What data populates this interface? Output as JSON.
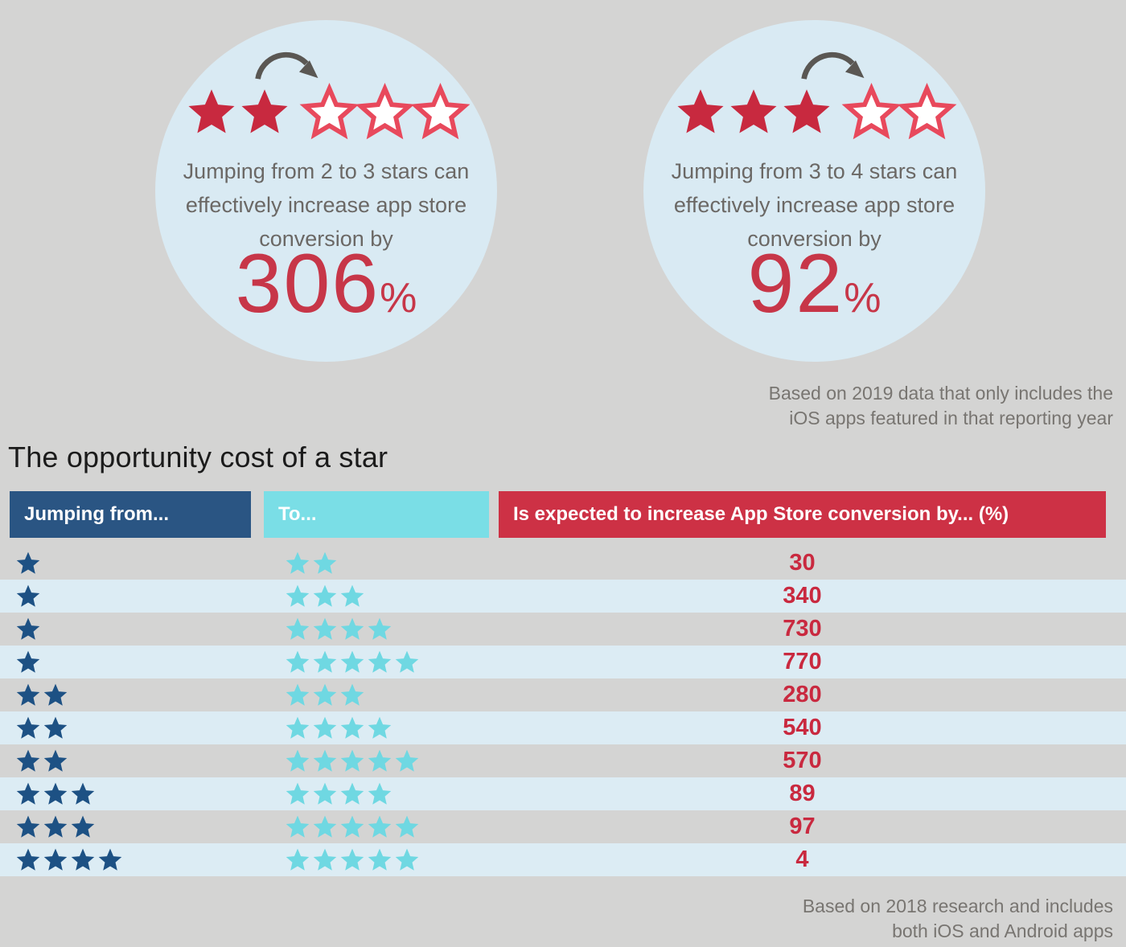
{
  "colors": {
    "page_bg": "#d4d4d3",
    "circle_bg": "#d9eaf3",
    "star_red": "#c8293f",
    "star_outline_red": "#e8495c",
    "star_navy": "#1d5184",
    "star_cyan": "#6fd8e2",
    "arrow_gray": "#5a5753",
    "header_blue": "#2a5583",
    "header_cyan": "#7adee6",
    "header_red": "#cd3145",
    "row_blue": "#dcecf4",
    "value_red": "#c9293f",
    "number_red": "#c73648",
    "text_gray": "#6b6865",
    "footnote_gray": "#787571",
    "heading_dark": "#1b1b1b"
  },
  "circles": [
    {
      "stars_filled": 2,
      "stars_outline": 3,
      "text": "Jumping from 2 to 3 stars can effectively increase app store conversion by",
      "value": "306",
      "percent_sign": "%"
    },
    {
      "stars_filled": 3,
      "stars_outline": 2,
      "text": "Jumping from 3 to 4 stars can effectively increase app store conversion by",
      "value": "92",
      "percent_sign": "%"
    }
  ],
  "note_top": {
    "line1": "Based on 2019 data that only includes the",
    "line2": "iOS apps featured in that reporting year"
  },
  "section": {
    "title": "The opportunity cost of a star"
  },
  "table": {
    "headers": [
      {
        "label": "Jumping from..."
      },
      {
        "label": "To..."
      },
      {
        "label": "Is expected to increase App Store conversion by... (%)"
      }
    ],
    "rows": [
      {
        "from": 1,
        "to": 2,
        "value": "30"
      },
      {
        "from": 1,
        "to": 3,
        "value": "340"
      },
      {
        "from": 1,
        "to": 4,
        "value": "730"
      },
      {
        "from": 1,
        "to": 5,
        "value": "770"
      },
      {
        "from": 2,
        "to": 3,
        "value": "280"
      },
      {
        "from": 2,
        "to": 4,
        "value": "540"
      },
      {
        "from": 2,
        "to": 5,
        "value": "570"
      },
      {
        "from": 3,
        "to": 4,
        "value": "89"
      },
      {
        "from": 3,
        "to": 5,
        "value": "97"
      },
      {
        "from": 4,
        "to": 5,
        "value": "4"
      }
    ]
  },
  "note_bottom": {
    "line1": "Based on 2018 research and includes",
    "line2": "both iOS and Android apps"
  },
  "chart_data": {
    "type": "table",
    "title": "The opportunity cost of a star",
    "columns": [
      "Jumping from... (stars)",
      "To... (stars)",
      "Is expected to increase App Store conversion by... (%)"
    ],
    "rows": [
      [
        1,
        2,
        30
      ],
      [
        1,
        3,
        340
      ],
      [
        1,
        4,
        730
      ],
      [
        1,
        5,
        770
      ],
      [
        2,
        3,
        280
      ],
      [
        2,
        4,
        540
      ],
      [
        2,
        5,
        570
      ],
      [
        3,
        4,
        89
      ],
      [
        3,
        5,
        97
      ],
      [
        4,
        5,
        4
      ]
    ],
    "callouts": [
      {
        "from_stars": 2,
        "to_stars": 3,
        "conversion_increase_pct": 306,
        "note": "Based on 2019 data that only includes the iOS apps featured in that reporting year"
      },
      {
        "from_stars": 3,
        "to_stars": 4,
        "conversion_increase_pct": 92,
        "note": "Based on 2019 data that only includes the iOS apps featured in that reporting year"
      }
    ],
    "notes": [
      "Based on 2019 data that only includes the iOS apps featured in that reporting year",
      "Based on 2018 research and includes both iOS and Android apps"
    ]
  }
}
